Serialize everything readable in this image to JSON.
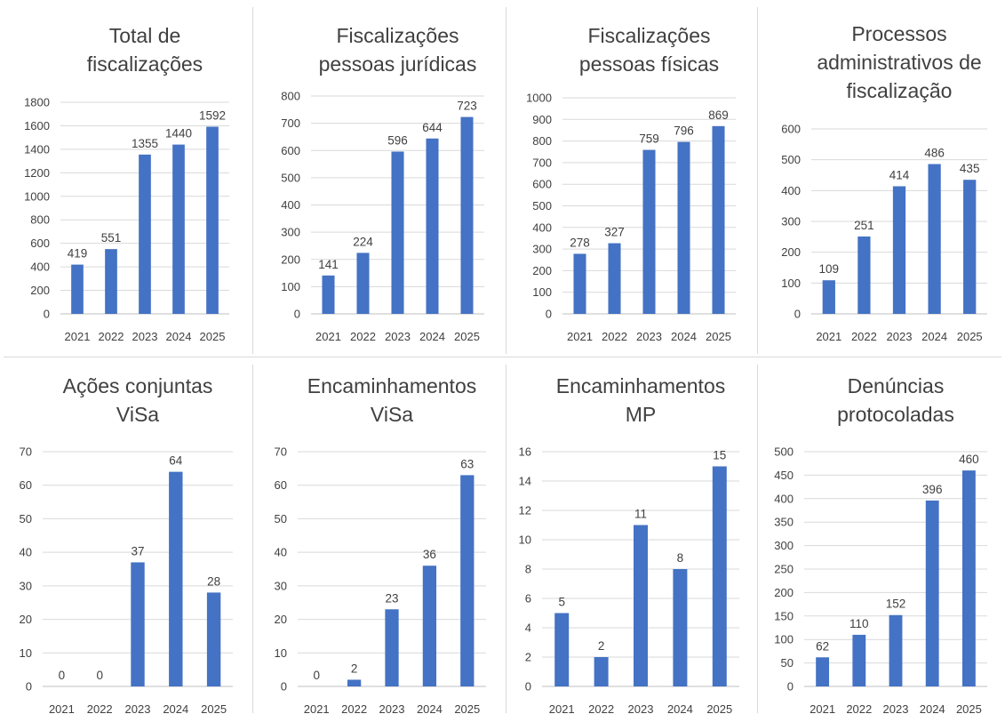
{
  "chart_data": [
    {
      "type": "bar",
      "title_lines": [
        "Total de",
        "fiscalizações"
      ],
      "categories": [
        "2021",
        "2022",
        "2023",
        "2024",
        "2025"
      ],
      "values": [
        419,
        551,
        1355,
        1440,
        1592
      ],
      "yticks": [
        0,
        200,
        400,
        600,
        800,
        1000,
        1200,
        1400,
        1600,
        1800
      ],
      "ylim": [
        0,
        1800
      ],
      "grid": true,
      "bar_color": "#4472c4"
    },
    {
      "type": "bar",
      "title_lines": [
        "Fiscalizações",
        "pessoas jurídicas"
      ],
      "categories": [
        "2021",
        "2022",
        "2023",
        "2024",
        "2025"
      ],
      "values": [
        141,
        224,
        596,
        644,
        723
      ],
      "yticks": [
        0,
        100,
        200,
        300,
        400,
        500,
        600,
        700,
        800
      ],
      "ylim": [
        0,
        800
      ],
      "grid": true,
      "bar_color": "#4472c4"
    },
    {
      "type": "bar",
      "title_lines": [
        "Fiscalizações",
        "pessoas físicas"
      ],
      "categories": [
        "2021",
        "2022",
        "2023",
        "2024",
        "2025"
      ],
      "values": [
        278,
        327,
        759,
        796,
        869
      ],
      "yticks": [
        0,
        100,
        200,
        300,
        400,
        500,
        600,
        700,
        800,
        900,
        1000
      ],
      "ylim": [
        0,
        1000
      ],
      "grid": true,
      "bar_color": "#4472c4"
    },
    {
      "type": "bar",
      "title_lines": [
        "Processos",
        "administrativos de",
        "fiscalização"
      ],
      "categories": [
        "2021",
        "2022",
        "2023",
        "2024",
        "2025"
      ],
      "values": [
        109,
        251,
        414,
        486,
        435
      ],
      "yticks": [
        0,
        100,
        200,
        300,
        400,
        500,
        600
      ],
      "ylim": [
        0,
        600
      ],
      "grid": true,
      "bar_color": "#4472c4"
    },
    {
      "type": "bar",
      "title_lines": [
        "Ações conjuntas",
        "ViSa"
      ],
      "categories": [
        "2021",
        "2022",
        "2023",
        "2024",
        "2025"
      ],
      "values": [
        0,
        0,
        37,
        64,
        28
      ],
      "yticks": [
        0,
        10,
        20,
        30,
        40,
        50,
        60,
        70
      ],
      "ylim": [
        0,
        70
      ],
      "grid": true,
      "bar_color": "#4472c4"
    },
    {
      "type": "bar",
      "title_lines": [
        "Encaminhamentos",
        "ViSa"
      ],
      "categories": [
        "2021",
        "2022",
        "2023",
        "2024",
        "2025"
      ],
      "values": [
        0,
        2,
        23,
        36,
        63
      ],
      "yticks": [
        0,
        10,
        20,
        30,
        40,
        50,
        60,
        70
      ],
      "ylim": [
        0,
        70
      ],
      "grid": true,
      "bar_color": "#4472c4"
    },
    {
      "type": "bar",
      "title_lines": [
        "Encaminhamentos",
        "MP"
      ],
      "categories": [
        "2021",
        "2022",
        "2023",
        "2024",
        "2025"
      ],
      "values": [
        5,
        2,
        11,
        8,
        15
      ],
      "yticks": [
        0,
        2,
        4,
        6,
        8,
        10,
        12,
        14,
        16
      ],
      "ylim": [
        0,
        16
      ],
      "grid": true,
      "bar_color": "#4472c4"
    },
    {
      "type": "bar",
      "title_lines": [
        "Denúncias",
        "protocoladas"
      ],
      "categories": [
        "2021",
        "2022",
        "2023",
        "2024",
        "2025"
      ],
      "values": [
        62,
        110,
        152,
        396,
        460
      ],
      "yticks": [
        0,
        50,
        100,
        150,
        200,
        250,
        300,
        350,
        400,
        450,
        500
      ],
      "ylim": [
        0,
        500
      ],
      "grid": true,
      "bar_color": "#4472c4"
    }
  ]
}
